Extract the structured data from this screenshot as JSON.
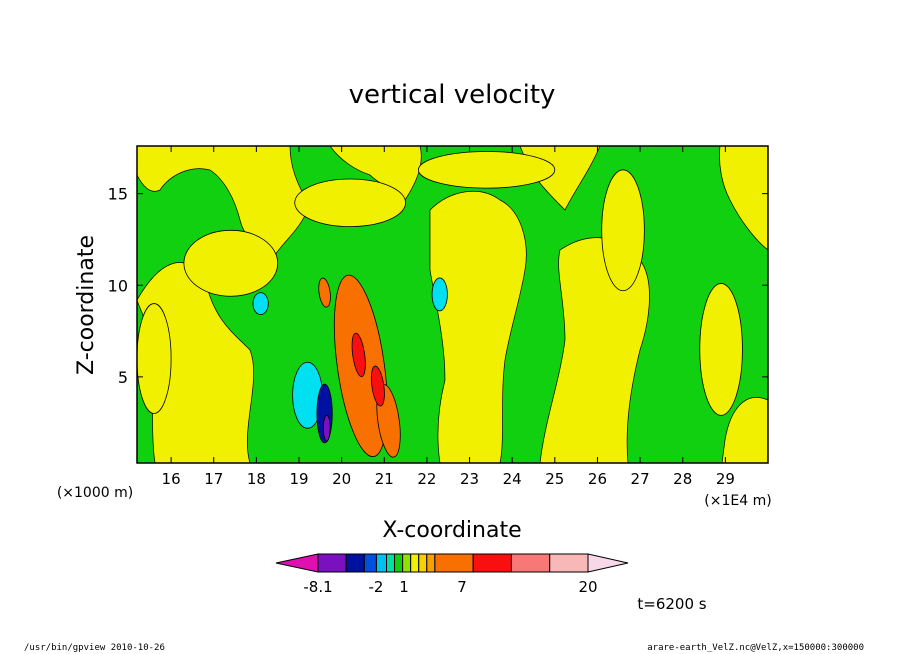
{
  "chart_data": {
    "type": "heatmap",
    "title": "vertical velocity",
    "xlabel": "X-coordinate",
    "ylabel": "Z-coordinate",
    "x_unit_left": "(×1000 m)",
    "x_unit_right": "(×1E4 m)",
    "x_ticks": [
      "16",
      "17",
      "18",
      "19",
      "20",
      "21",
      "22",
      "23",
      "24",
      "25",
      "26",
      "27",
      "28",
      "29"
    ],
    "y_ticks": [
      "5",
      "10",
      "15"
    ],
    "xlim": [
      15.2,
      30.0
    ],
    "ylim": [
      0.3,
      17.6
    ],
    "time_label": "t=6200 s",
    "colorbar": {
      "colors": [
        "#e010b0",
        "#7a10c0",
        "#0010a0",
        "#0050e0",
        "#00c0f0",
        "#00e0a0",
        "#10d010",
        "#90e000",
        "#f0f000",
        "#f8d000",
        "#f8a000",
        "#f87000",
        "#f81010",
        "#f87878",
        "#f8b8b8",
        "#f8d8e8"
      ],
      "labels": [
        "-8.1",
        "-2",
        "1",
        "7",
        "20"
      ]
    },
    "features": [
      {
        "kind": "fill",
        "level": "yellow",
        "x": 15.6,
        "z": 6.0,
        "rx": 0.4,
        "rz": 3.0
      },
      {
        "kind": "fill",
        "level": "yellow",
        "x": 17.4,
        "z": 11.2,
        "rx": 1.1,
        "rz": 1.8
      },
      {
        "kind": "fill",
        "level": "yellow",
        "x": 20.2,
        "z": 14.5,
        "rx": 1.3,
        "rz": 1.3
      },
      {
        "kind": "fill",
        "level": "yellow",
        "x": 23.4,
        "z": 16.3,
        "rx": 1.6,
        "rz": 1.0
      },
      {
        "kind": "fill",
        "level": "yellow",
        "x": 28.9,
        "z": 6.5,
        "rx": 0.5,
        "rz": 3.6
      },
      {
        "kind": "fill",
        "level": "yellow",
        "x": 26.6,
        "z": 13.0,
        "rx": 0.5,
        "rz": 3.3
      },
      {
        "kind": "fill",
        "level": "cyan",
        "x": 18.1,
        "z": 9.0,
        "rx": 0.18,
        "rz": 0.6
      },
      {
        "kind": "fill",
        "level": "cyan",
        "x": 19.2,
        "z": 4.0,
        "rx": 0.35,
        "rz": 1.8
      },
      {
        "kind": "fill",
        "level": "cyan",
        "x": 22.3,
        "z": 9.5,
        "rx": 0.18,
        "rz": 0.9
      },
      {
        "kind": "fill",
        "level": "blue",
        "x": 19.6,
        "z": 3.0,
        "rx": 0.18,
        "rz": 1.6
      },
      {
        "kind": "fill",
        "level": "violet",
        "x": 19.65,
        "z": 2.2,
        "rx": 0.08,
        "rz": 0.7
      },
      {
        "kind": "fill",
        "level": "orange",
        "x": 20.45,
        "z": 5.6,
        "rx": 0.55,
        "rz": 5.0
      },
      {
        "kind": "fill",
        "level": "orange",
        "x": 21.1,
        "z": 2.6,
        "rx": 0.25,
        "rz": 2.0
      },
      {
        "kind": "fill",
        "level": "orange",
        "x": 19.6,
        "z": 9.6,
        "rx": 0.13,
        "rz": 0.8
      },
      {
        "kind": "fill",
        "level": "red",
        "x": 20.4,
        "z": 6.2,
        "rx": 0.14,
        "rz": 1.2
      },
      {
        "kind": "fill",
        "level": "red",
        "x": 20.85,
        "z": 4.5,
        "rx": 0.14,
        "rz": 1.1
      }
    ]
  },
  "footer": {
    "left": "/usr/bin/gpview   2010-10-26",
    "right": "arare-earth_VelZ.nc@VelZ,x=150000:300000"
  }
}
